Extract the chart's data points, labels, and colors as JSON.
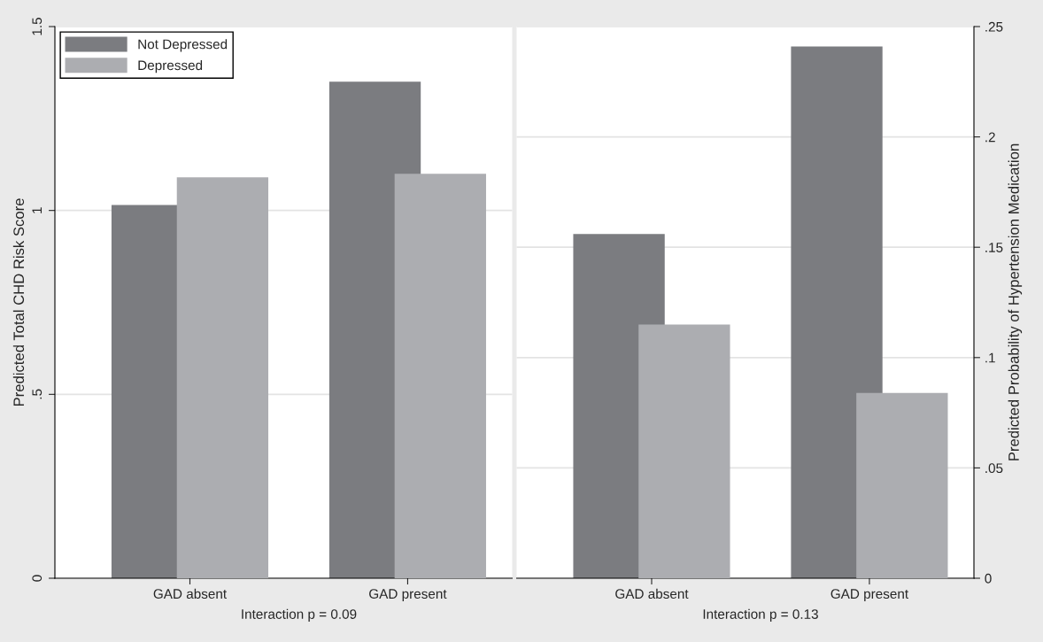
{
  "chart_data": [
    {
      "type": "bar",
      "categories": [
        "GAD absent",
        "GAD present"
      ],
      "ylabel": "Predicted Total CHD Risk Score",
      "ylim": [
        0,
        1.5
      ],
      "yticks": [
        0,
        {
          "value": 0.5,
          "label": ".5"
        },
        1,
        1.5
      ],
      "grid": "y",
      "legend": "top left",
      "annotations": [
        "Interaction p = 0.09"
      ],
      "series": [
        {
          "name": "Not Depressed",
          "color": "#7b7c80",
          "values": [
            1.015,
            1.35
          ]
        },
        {
          "name": "Depressed",
          "color": "#acadb1",
          "values": [
            1.09,
            1.1
          ]
        }
      ]
    },
    {
      "type": "bar",
      "categories": [
        "GAD absent",
        "GAD present"
      ],
      "ylabel": "Predicted Probability of Hypertension Medication",
      "ylim": [
        0,
        0.25
      ],
      "yticks": [
        0,
        {
          "value": 0.05,
          "label": ".05"
        },
        {
          "value": 0.1,
          "label": ".1"
        },
        {
          "value": 0.15,
          "label": ".15"
        },
        {
          "value": 0.2,
          "label": ".2"
        },
        {
          "value": 0.25,
          "label": ".25"
        }
      ],
      "grid": "y",
      "annotations": [
        "Interaction p = 0.13"
      ],
      "series": [
        {
          "color": "#7b7c80",
          "values": [
            0.156,
            0.241
          ]
        },
        {
          "color": "#acadb1",
          "values": [
            0.115,
            0.084
          ]
        }
      ]
    }
  ]
}
